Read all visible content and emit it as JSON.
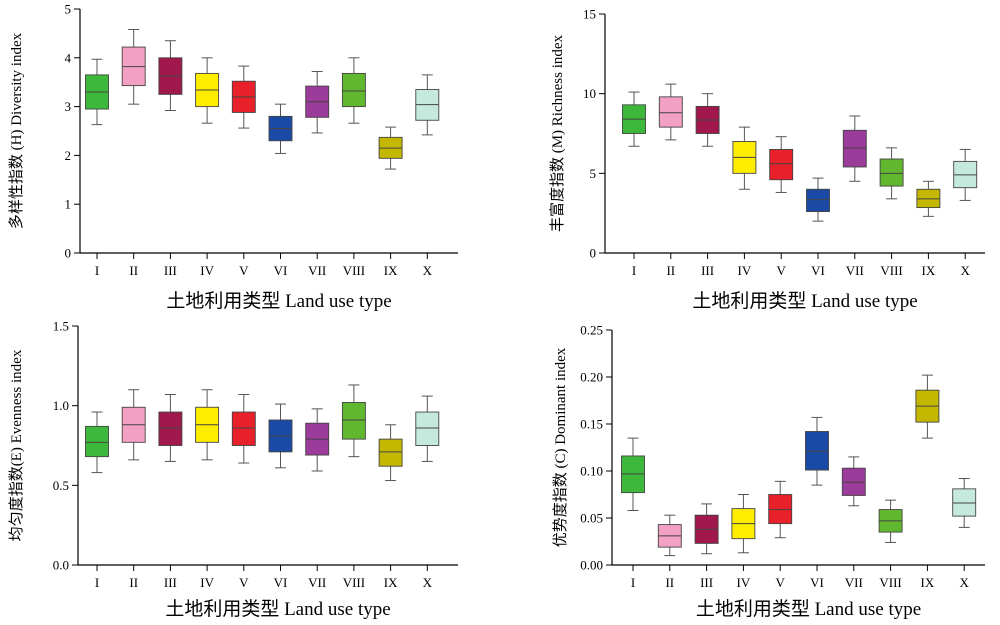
{
  "colors": [
    "#3db83a",
    "#f2a0c3",
    "#a0184c",
    "#ffed00",
    "#e8202a",
    "#1a4aa6",
    "#9b3b9a",
    "#61b72e",
    "#c4b700",
    "#c5e9dd"
  ],
  "categories": [
    "I",
    "II",
    "III",
    "IV",
    "V",
    "VI",
    "VII",
    "VIII",
    "IX",
    "X"
  ],
  "chart_data": [
    {
      "type": "box",
      "title": "",
      "xlabel": "土地利用类型 Land use type",
      "ylabel": "多样性指数 (H) Diversity index",
      "ylim": [
        0,
        5
      ],
      "yticks": [
        "0",
        "1",
        "2",
        "3",
        "4",
        "5"
      ],
      "categories": [
        "I",
        "II",
        "III",
        "IV",
        "V",
        "VI",
        "VII",
        "VIII",
        "IX",
        "X"
      ],
      "boxes": [
        {
          "min": 2.63,
          "q1": 2.95,
          "median": 3.3,
          "q3": 3.65,
          "max": 3.97
        },
        {
          "min": 3.05,
          "q1": 3.43,
          "median": 3.82,
          "q3": 4.22,
          "max": 4.58
        },
        {
          "min": 2.92,
          "q1": 3.25,
          "median": 3.63,
          "q3": 4.0,
          "max": 4.35
        },
        {
          "min": 2.66,
          "q1": 3.0,
          "median": 3.34,
          "q3": 3.68,
          "max": 4.0
        },
        {
          "min": 2.56,
          "q1": 2.88,
          "median": 3.2,
          "q3": 3.52,
          "max": 3.83
        },
        {
          "min": 2.04,
          "q1": 2.3,
          "median": 2.55,
          "q3": 2.8,
          "max": 3.05
        },
        {
          "min": 2.46,
          "q1": 2.78,
          "median": 3.1,
          "q3": 3.42,
          "max": 3.72
        },
        {
          "min": 2.66,
          "q1": 3.0,
          "median": 3.32,
          "q3": 3.68,
          "max": 4.0
        },
        {
          "min": 1.72,
          "q1": 1.94,
          "median": 2.15,
          "q3": 2.37,
          "max": 2.58
        },
        {
          "min": 2.42,
          "q1": 2.72,
          "median": 3.04,
          "q3": 3.35,
          "max": 3.65
        }
      ]
    },
    {
      "type": "box",
      "title": "",
      "xlabel": "土地利用类型 Land use type",
      "ylabel": "丰富度指数 (M) Richness index",
      "ylim": [
        0,
        15
      ],
      "yticks": [
        "0",
        "5",
        "10",
        "15"
      ],
      "categories": [
        "I",
        "II",
        "III",
        "IV",
        "V",
        "VI",
        "VII",
        "VIII",
        "IX",
        "X"
      ],
      "boxes": [
        {
          "min": 6.7,
          "q1": 7.5,
          "median": 8.4,
          "q3": 9.3,
          "max": 10.1
        },
        {
          "min": 7.1,
          "q1": 7.9,
          "median": 8.8,
          "q3": 9.8,
          "max": 10.6
        },
        {
          "min": 6.7,
          "q1": 7.5,
          "median": 8.35,
          "q3": 9.2,
          "max": 10.0
        },
        {
          "min": 4.0,
          "q1": 5.0,
          "median": 6.0,
          "q3": 7.0,
          "max": 7.9
        },
        {
          "min": 3.8,
          "q1": 4.6,
          "median": 5.6,
          "q3": 6.5,
          "max": 7.3
        },
        {
          "min": 2.0,
          "q1": 2.6,
          "median": 3.35,
          "q3": 4.0,
          "max": 4.7
        },
        {
          "min": 4.5,
          "q1": 5.4,
          "median": 6.6,
          "q3": 7.7,
          "max": 8.6
        },
        {
          "min": 3.4,
          "q1": 4.2,
          "median": 5.0,
          "q3": 5.9,
          "max": 6.6
        },
        {
          "min": 2.3,
          "q1": 2.85,
          "median": 3.4,
          "q3": 4.0,
          "max": 4.5
        },
        {
          "min": 3.3,
          "q1": 4.1,
          "median": 4.9,
          "q3": 5.75,
          "max": 6.5
        }
      ]
    },
    {
      "type": "box",
      "title": "",
      "xlabel": "土地利用类型 Land use type",
      "ylabel": "均匀度指数(E) Evenness index",
      "ylim": [
        0,
        1.5
      ],
      "yticks": [
        "0.0",
        "0.5",
        "1.0",
        "1.5"
      ],
      "categories": [
        "I",
        "II",
        "III",
        "IV",
        "V",
        "VI",
        "VII",
        "VIII",
        "IX",
        "X"
      ],
      "boxes": [
        {
          "min": 0.58,
          "q1": 0.68,
          "median": 0.77,
          "q3": 0.87,
          "max": 0.96
        },
        {
          "min": 0.66,
          "q1": 0.77,
          "median": 0.88,
          "q3": 0.99,
          "max": 1.1
        },
        {
          "min": 0.65,
          "q1": 0.75,
          "median": 0.86,
          "q3": 0.96,
          "max": 1.07
        },
        {
          "min": 0.66,
          "q1": 0.77,
          "median": 0.88,
          "q3": 0.99,
          "max": 1.1
        },
        {
          "min": 0.64,
          "q1": 0.75,
          "median": 0.86,
          "q3": 0.96,
          "max": 1.07
        },
        {
          "min": 0.61,
          "q1": 0.71,
          "median": 0.81,
          "q3": 0.91,
          "max": 1.01
        },
        {
          "min": 0.59,
          "q1": 0.69,
          "median": 0.79,
          "q3": 0.89,
          "max": 0.98
        },
        {
          "min": 0.68,
          "q1": 0.79,
          "median": 0.91,
          "q3": 1.02,
          "max": 1.13
        },
        {
          "min": 0.53,
          "q1": 0.62,
          "median": 0.71,
          "q3": 0.79,
          "max": 0.88
        },
        {
          "min": 0.65,
          "q1": 0.75,
          "median": 0.86,
          "q3": 0.96,
          "max": 1.06
        }
      ]
    },
    {
      "type": "box",
      "title": "",
      "xlabel": "土地利用类型 Land use type",
      "ylabel": "优势度指数 (C) Dominant index",
      "ylim": [
        0,
        0.25
      ],
      "yticks": [
        "0.00",
        "0.05",
        "0.10",
        "0.15",
        "0.20",
        "0.25"
      ],
      "categories": [
        "I",
        "II",
        "III",
        "IV",
        "V",
        "VI",
        "VII",
        "VIII",
        "IX",
        "X"
      ],
      "boxes": [
        {
          "min": 0.058,
          "q1": 0.077,
          "median": 0.097,
          "q3": 0.116,
          "max": 0.135
        },
        {
          "min": 0.01,
          "q1": 0.019,
          "median": 0.031,
          "q3": 0.043,
          "max": 0.053
        },
        {
          "min": 0.012,
          "q1": 0.023,
          "median": 0.038,
          "q3": 0.053,
          "max": 0.065
        },
        {
          "min": 0.013,
          "q1": 0.028,
          "median": 0.044,
          "q3": 0.06,
          "max": 0.075
        },
        {
          "min": 0.029,
          "q1": 0.044,
          "median": 0.059,
          "q3": 0.075,
          "max": 0.089
        },
        {
          "min": 0.085,
          "q1": 0.101,
          "median": 0.121,
          "q3": 0.142,
          "max": 0.157
        },
        {
          "min": 0.063,
          "q1": 0.074,
          "median": 0.088,
          "q3": 0.103,
          "max": 0.115
        },
        {
          "min": 0.024,
          "q1": 0.035,
          "median": 0.047,
          "q3": 0.059,
          "max": 0.069
        },
        {
          "min": 0.135,
          "q1": 0.152,
          "median": 0.169,
          "q3": 0.186,
          "max": 0.202
        },
        {
          "min": 0.04,
          "q1": 0.052,
          "median": 0.066,
          "q3": 0.081,
          "max": 0.092
        }
      ]
    }
  ]
}
